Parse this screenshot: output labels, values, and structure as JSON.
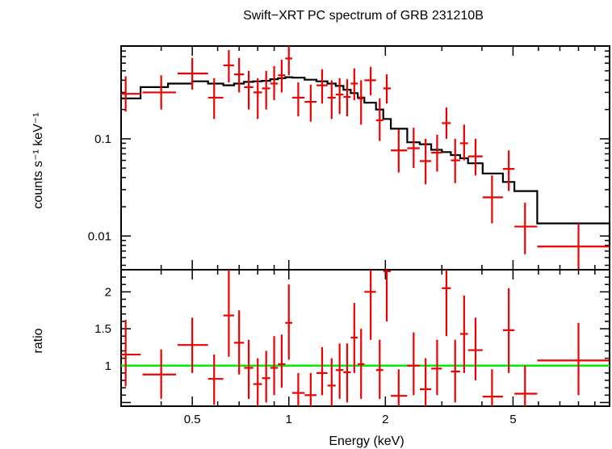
{
  "chart_data": [
    {
      "type": "scatter",
      "title": "Swift−XRT PC spectrum of GRB 231210B",
      "xlabel": "",
      "ylabel": "counts s⁻¹ keV⁻¹",
      "xscale": "log",
      "yscale": "log",
      "xlim": [
        0.3,
        10
      ],
      "ylim": [
        0.0045,
        0.9
      ],
      "yticks": [
        0.01,
        0.1
      ],
      "ytick_labels": [
        "0.01",
        "0.1"
      ],
      "colors": {
        "data": "#ee0000",
        "model": "#000000"
      },
      "series": [
        {
          "marker": "crosses",
          "points": [
            {
              "x": 0.31,
              "xlo": 0.3,
              "xhi": 0.345,
              "y": 0.29,
              "ylo": 0.19,
              "yhi": 0.44
            },
            {
              "x": 0.4,
              "xlo": 0.35,
              "xhi": 0.445,
              "y": 0.3,
              "ylo": 0.2,
              "yhi": 0.45
            },
            {
              "x": 0.5,
              "xlo": 0.45,
              "xhi": 0.56,
              "y": 0.47,
              "ylo": 0.32,
              "yhi": 0.68
            },
            {
              "x": 0.585,
              "xlo": 0.56,
              "xhi": 0.625,
              "y": 0.265,
              "ylo": 0.16,
              "yhi": 0.42
            },
            {
              "x": 0.65,
              "xlo": 0.625,
              "xhi": 0.675,
              "y": 0.57,
              "ylo": 0.38,
              "yhi": 0.82
            },
            {
              "x": 0.7,
              "xlo": 0.675,
              "xhi": 0.725,
              "y": 0.46,
              "ylo": 0.3,
              "yhi": 0.68
            },
            {
              "x": 0.75,
              "xlo": 0.725,
              "xhi": 0.775,
              "y": 0.34,
              "ylo": 0.2,
              "yhi": 0.5
            },
            {
              "x": 0.8,
              "xlo": 0.775,
              "xhi": 0.825,
              "y": 0.3,
              "ylo": 0.16,
              "yhi": 0.42
            },
            {
              "x": 0.85,
              "xlo": 0.825,
              "xhi": 0.875,
              "y": 0.33,
              "ylo": 0.2,
              "yhi": 0.5
            },
            {
              "x": 0.9,
              "xlo": 0.875,
              "xhi": 0.925,
              "y": 0.37,
              "ylo": 0.25,
              "yhi": 0.56
            },
            {
              "x": 0.95,
              "xlo": 0.925,
              "xhi": 0.975,
              "y": 0.45,
              "ylo": 0.3,
              "yhi": 0.65
            },
            {
              "x": 1.0,
              "xlo": 0.975,
              "xhi": 1.025,
              "y": 0.67,
              "ylo": 0.45,
              "yhi": 0.95
            },
            {
              "x": 1.07,
              "xlo": 1.025,
              "xhi": 1.12,
              "y": 0.265,
              "ylo": 0.17,
              "yhi": 0.38
            },
            {
              "x": 1.17,
              "xlo": 1.12,
              "xhi": 1.22,
              "y": 0.24,
              "ylo": 0.15,
              "yhi": 0.36
            },
            {
              "x": 1.27,
              "xlo": 1.22,
              "xhi": 1.32,
              "y": 0.355,
              "ylo": 0.23,
              "yhi": 0.52
            },
            {
              "x": 1.36,
              "xlo": 1.32,
              "xhi": 1.4,
              "y": 0.265,
              "ylo": 0.16,
              "yhi": 0.4
            },
            {
              "x": 1.44,
              "xlo": 1.4,
              "xhi": 1.48,
              "y": 0.285,
              "ylo": 0.18,
              "yhi": 0.42
            },
            {
              "x": 1.52,
              "xlo": 1.48,
              "xhi": 1.56,
              "y": 0.27,
              "ylo": 0.17,
              "yhi": 0.41
            },
            {
              "x": 1.6,
              "xlo": 1.56,
              "xhi": 1.64,
              "y": 0.37,
              "ylo": 0.25,
              "yhi": 0.53
            },
            {
              "x": 1.68,
              "xlo": 1.64,
              "xhi": 1.72,
              "y": 0.26,
              "ylo": 0.14,
              "yhi": 0.4
            },
            {
              "x": 1.8,
              "xlo": 1.72,
              "xhi": 1.87,
              "y": 0.4,
              "ylo": 0.28,
              "yhi": 0.55
            },
            {
              "x": 1.92,
              "xlo": 1.87,
              "xhi": 1.97,
              "y": 0.155,
              "ylo": 0.095,
              "yhi": 0.26
            },
            {
              "x": 2.02,
              "xlo": 1.97,
              "xhi": 2.08,
              "y": 0.33,
              "ylo": 0.23,
              "yhi": 0.46
            },
            {
              "x": 2.2,
              "xlo": 2.08,
              "xhi": 2.34,
              "y": 0.076,
              "ylo": 0.045,
              "yhi": 0.125
            },
            {
              "x": 2.45,
              "xlo": 2.34,
              "xhi": 2.56,
              "y": 0.08,
              "ylo": 0.05,
              "yhi": 0.13
            },
            {
              "x": 2.67,
              "xlo": 2.56,
              "xhi": 2.78,
              "y": 0.059,
              "ylo": 0.034,
              "yhi": 0.1
            },
            {
              "x": 2.9,
              "xlo": 2.78,
              "xhi": 3.0,
              "y": 0.072,
              "ylo": 0.046,
              "yhi": 0.11
            },
            {
              "x": 3.1,
              "xlo": 3.0,
              "xhi": 3.2,
              "y": 0.145,
              "ylo": 0.1,
              "yhi": 0.21
            },
            {
              "x": 3.3,
              "xlo": 3.2,
              "xhi": 3.42,
              "y": 0.06,
              "ylo": 0.035,
              "yhi": 0.1
            },
            {
              "x": 3.52,
              "xlo": 3.42,
              "xhi": 3.62,
              "y": 0.09,
              "ylo": 0.06,
              "yhi": 0.14
            },
            {
              "x": 3.82,
              "xlo": 3.62,
              "xhi": 4.02,
              "y": 0.066,
              "ylo": 0.042,
              "yhi": 0.1
            },
            {
              "x": 4.3,
              "xlo": 4.02,
              "xhi": 4.65,
              "y": 0.025,
              "ylo": 0.0135,
              "yhi": 0.042
            },
            {
              "x": 4.85,
              "xlo": 4.65,
              "xhi": 5.05,
              "y": 0.049,
              "ylo": 0.029,
              "yhi": 0.076
            },
            {
              "x": 5.45,
              "xlo": 5.05,
              "xhi": 5.95,
              "y": 0.0125,
              "ylo": 0.0065,
              "yhi": 0.022
            },
            {
              "x": 8.0,
              "xlo": 5.95,
              "xhi": 10.0,
              "y": 0.0078,
              "ylo": 0.0045,
              "yhi": 0.0135
            }
          ]
        },
        {
          "marker": "step",
          "edges": [
            0.3,
            0.345,
            0.42,
            0.5,
            0.56,
            0.625,
            0.675,
            0.725,
            0.775,
            0.825,
            0.875,
            0.925,
            0.975,
            1.025,
            1.12,
            1.22,
            1.32,
            1.4,
            1.48,
            1.56,
            1.64,
            1.72,
            1.87,
            1.97,
            2.08,
            2.34,
            2.56,
            2.78,
            3.0,
            3.2,
            3.42,
            3.62,
            4.02,
            4.65,
            5.05,
            5.95,
            10.0
          ],
          "values": [
            0.26,
            0.34,
            0.37,
            0.39,
            0.37,
            0.355,
            0.37,
            0.385,
            0.39,
            0.395,
            0.41,
            0.42,
            0.43,
            0.425,
            0.405,
            0.39,
            0.37,
            0.35,
            0.32,
            0.295,
            0.265,
            0.235,
            0.2,
            0.16,
            0.127,
            0.092,
            0.088,
            0.077,
            0.073,
            0.068,
            0.063,
            0.056,
            0.044,
            0.036,
            0.029,
            0.0135,
            0.0078
          ]
        }
      ]
    },
    {
      "type": "scatter",
      "title": "",
      "xlabel": "Energy (keV)",
      "ylabel": "ratio",
      "xscale": "log",
      "yscale": "linear",
      "xlim": [
        0.3,
        10
      ],
      "ylim": [
        0.45,
        2.3
      ],
      "yticks": [
        1,
        1.5,
        2
      ],
      "ytick_labels": [
        "1",
        "1.5",
        "2"
      ],
      "xticks": [
        0.5,
        1,
        2,
        5
      ],
      "xtick_labels": [
        "0.5",
        "1",
        "2",
        "5"
      ],
      "colors": {
        "data": "#ee0000",
        "reference": "#00ee00"
      },
      "reference_line": 1,
      "series": [
        {
          "marker": "crosses",
          "points": [
            {
              "x": 0.31,
              "xlo": 0.3,
              "xhi": 0.345,
              "y": 1.15,
              "ylo": 0.72,
              "yhi": 1.62
            },
            {
              "x": 0.4,
              "xlo": 0.35,
              "xhi": 0.445,
              "y": 0.88,
              "ylo": 0.55,
              "yhi": 1.22
            },
            {
              "x": 0.5,
              "xlo": 0.45,
              "xhi": 0.56,
              "y": 1.28,
              "ylo": 0.9,
              "yhi": 1.65
            },
            {
              "x": 0.585,
              "xlo": 0.56,
              "xhi": 0.625,
              "y": 0.82,
              "ylo": 0.47,
              "yhi": 1.15
            },
            {
              "x": 0.65,
              "xlo": 0.625,
              "xhi": 0.675,
              "y": 1.68,
              "ylo": 1.12,
              "yhi": 2.3
            },
            {
              "x": 0.7,
              "xlo": 0.675,
              "xhi": 0.725,
              "y": 1.31,
              "ylo": 0.88,
              "yhi": 1.75
            },
            {
              "x": 0.75,
              "xlo": 0.725,
              "xhi": 0.775,
              "y": 0.97,
              "ylo": 0.55,
              "yhi": 1.35
            },
            {
              "x": 0.8,
              "xlo": 0.775,
              "xhi": 0.825,
              "y": 0.75,
              "ylo": 0.45,
              "yhi": 1.1
            },
            {
              "x": 0.85,
              "xlo": 0.825,
              "xhi": 0.875,
              "y": 0.83,
              "ylo": 0.5,
              "yhi": 1.2
            },
            {
              "x": 0.9,
              "xlo": 0.875,
              "xhi": 0.925,
              "y": 0.97,
              "ylo": 0.6,
              "yhi": 1.4
            },
            {
              "x": 0.95,
              "xlo": 0.925,
              "xhi": 0.975,
              "y": 1.02,
              "ylo": 0.7,
              "yhi": 1.42
            },
            {
              "x": 1.0,
              "xlo": 0.975,
              "xhi": 1.025,
              "y": 1.58,
              "ylo": 1.08,
              "yhi": 2.1
            },
            {
              "x": 1.07,
              "xlo": 1.025,
              "xhi": 1.12,
              "y": 0.63,
              "ylo": 0.45,
              "yhi": 0.9
            },
            {
              "x": 1.17,
              "xlo": 1.12,
              "xhi": 1.22,
              "y": 0.6,
              "ylo": 0.45,
              "yhi": 0.9
            },
            {
              "x": 1.27,
              "xlo": 1.22,
              "xhi": 1.32,
              "y": 0.9,
              "ylo": 0.6,
              "yhi": 1.25
            },
            {
              "x": 1.36,
              "xlo": 1.32,
              "xhi": 1.4,
              "y": 0.73,
              "ylo": 0.45,
              "yhi": 1.1
            },
            {
              "x": 1.44,
              "xlo": 1.4,
              "xhi": 1.48,
              "y": 0.94,
              "ylo": 0.55,
              "yhi": 1.3
            },
            {
              "x": 1.52,
              "xlo": 1.48,
              "xhi": 1.56,
              "y": 0.91,
              "ylo": 0.5,
              "yhi": 1.3
            },
            {
              "x": 1.6,
              "xlo": 1.56,
              "xhi": 1.64,
              "y": 1.38,
              "ylo": 0.9,
              "yhi": 1.85
            },
            {
              "x": 1.68,
              "xlo": 1.64,
              "xhi": 1.72,
              "y": 1.02,
              "ylo": 0.55,
              "yhi": 1.5
            },
            {
              "x": 1.8,
              "xlo": 1.72,
              "xhi": 1.87,
              "y": 2.0,
              "ylo": 1.35,
              "yhi": 2.3
            },
            {
              "x": 1.92,
              "xlo": 1.87,
              "xhi": 1.97,
              "y": 0.94,
              "ylo": 0.55,
              "yhi": 1.35
            },
            {
              "x": 2.02,
              "xlo": 1.97,
              "xhi": 2.08,
              "y": 2.28,
              "ylo": 1.6,
              "yhi": 2.3
            },
            {
              "x": 2.2,
              "xlo": 2.08,
              "xhi": 2.34,
              "y": 0.59,
              "ylo": 0.45,
              "yhi": 0.95
            },
            {
              "x": 2.45,
              "xlo": 2.34,
              "xhi": 2.56,
              "y": 1.0,
              "ylo": 0.6,
              "yhi": 1.45
            },
            {
              "x": 2.67,
              "xlo": 2.56,
              "xhi": 2.78,
              "y": 0.68,
              "ylo": 0.45,
              "yhi": 1.1
            },
            {
              "x": 2.9,
              "xlo": 2.78,
              "xhi": 3.0,
              "y": 0.96,
              "ylo": 0.6,
              "yhi": 1.35
            },
            {
              "x": 3.1,
              "xlo": 3.0,
              "xhi": 3.2,
              "y": 2.05,
              "ylo": 1.4,
              "yhi": 2.3
            },
            {
              "x": 3.3,
              "xlo": 3.2,
              "xhi": 3.42,
              "y": 0.92,
              "ylo": 0.5,
              "yhi": 1.35
            },
            {
              "x": 3.52,
              "xlo": 3.42,
              "xhi": 3.62,
              "y": 1.43,
              "ylo": 0.9,
              "yhi": 1.95
            },
            {
              "x": 3.82,
              "xlo": 3.62,
              "xhi": 4.02,
              "y": 1.21,
              "ylo": 0.8,
              "yhi": 1.65
            },
            {
              "x": 4.3,
              "xlo": 4.02,
              "xhi": 4.65,
              "y": 0.58,
              "ylo": 0.45,
              "yhi": 0.95
            },
            {
              "x": 4.85,
              "xlo": 4.65,
              "xhi": 5.05,
              "y": 1.48,
              "ylo": 0.9,
              "yhi": 2.05
            },
            {
              "x": 5.45,
              "xlo": 5.05,
              "xhi": 5.95,
              "y": 0.62,
              "ylo": 0.45,
              "yhi": 1.0
            },
            {
              "x": 8.0,
              "xlo": 5.95,
              "xhi": 10.0,
              "y": 1.07,
              "ylo": 0.6,
              "yhi": 1.58
            }
          ]
        }
      ]
    }
  ]
}
